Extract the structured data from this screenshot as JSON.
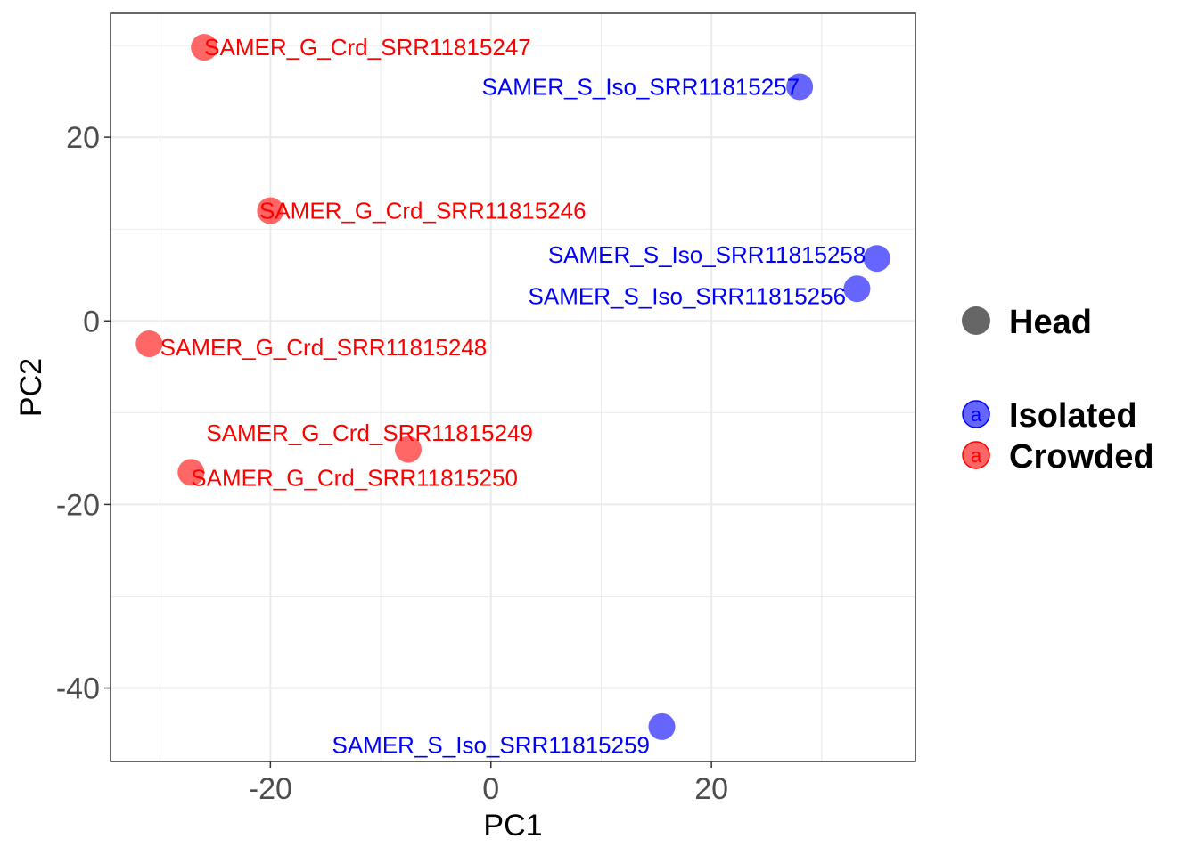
{
  "chart_data": {
    "type": "scatter",
    "title": "",
    "xlabel": "PC1",
    "ylabel": "PC2",
    "xlim": [
      -34.5,
      38.5
    ],
    "ylim": [
      -48,
      33.5
    ],
    "x_ticks": [
      -20,
      0,
      20
    ],
    "y_ticks": [
      20,
      0,
      -20,
      -40
    ],
    "grid": true,
    "legend": {
      "position": "right",
      "shape_title": "Head",
      "shape_color": "#666666",
      "key_glyph": "a",
      "groups": [
        {
          "name": "Isolated",
          "color": "#0000ff"
        },
        {
          "name": "Crowded",
          "color": "#ff0000"
        }
      ]
    },
    "points": [
      {
        "label": "SAMER_G_Crd_SRR11815247",
        "group": "Crowded",
        "x": -26,
        "y": 29.8,
        "label_x": -26,
        "label_y": 29.8,
        "anchor": "start"
      },
      {
        "label": "SAMER_S_Iso_SRR11815257",
        "group": "Isolated",
        "x": 28,
        "y": 25.5,
        "label_x": 28,
        "label_y": 25.5,
        "anchor": "end"
      },
      {
        "label": "SAMER_G_Crd_SRR11815246",
        "group": "Crowded",
        "x": -20,
        "y": 12,
        "label_x": -21,
        "label_y": 12,
        "anchor": "start"
      },
      {
        "label": "SAMER_S_Iso_SRR11815258",
        "group": "Isolated",
        "x": 35,
        "y": 6.8,
        "label_x": 34,
        "label_y": 7.2,
        "anchor": "end"
      },
      {
        "label": "SAMER_S_Iso_SRR11815256",
        "group": "Isolated",
        "x": 33.2,
        "y": 3.5,
        "label_x": 32.2,
        "label_y": 2.7,
        "anchor": "end"
      },
      {
        "label": "SAMER_G_Crd_SRR11815248",
        "group": "Crowded",
        "x": -31,
        "y": -2.5,
        "label_x": -30,
        "label_y": -2.9,
        "anchor": "start"
      },
      {
        "label": "SAMER_G_Crd_SRR11815249",
        "group": "Crowded",
        "x": -7.5,
        "y": -14,
        "label_x": -11,
        "label_y": -12.2,
        "anchor": "middle"
      },
      {
        "label": "SAMER_G_Crd_SRR11815250",
        "group": "Crowded",
        "x": -27.2,
        "y": -16.5,
        "label_x": -27.2,
        "label_y": -17.1,
        "anchor": "start"
      },
      {
        "label": "SAMER_S_Iso_SRR11815259",
        "group": "Isolated",
        "x": 15.5,
        "y": -44.2,
        "label_x": 0,
        "label_y": -46.2,
        "anchor": "middle"
      }
    ]
  }
}
